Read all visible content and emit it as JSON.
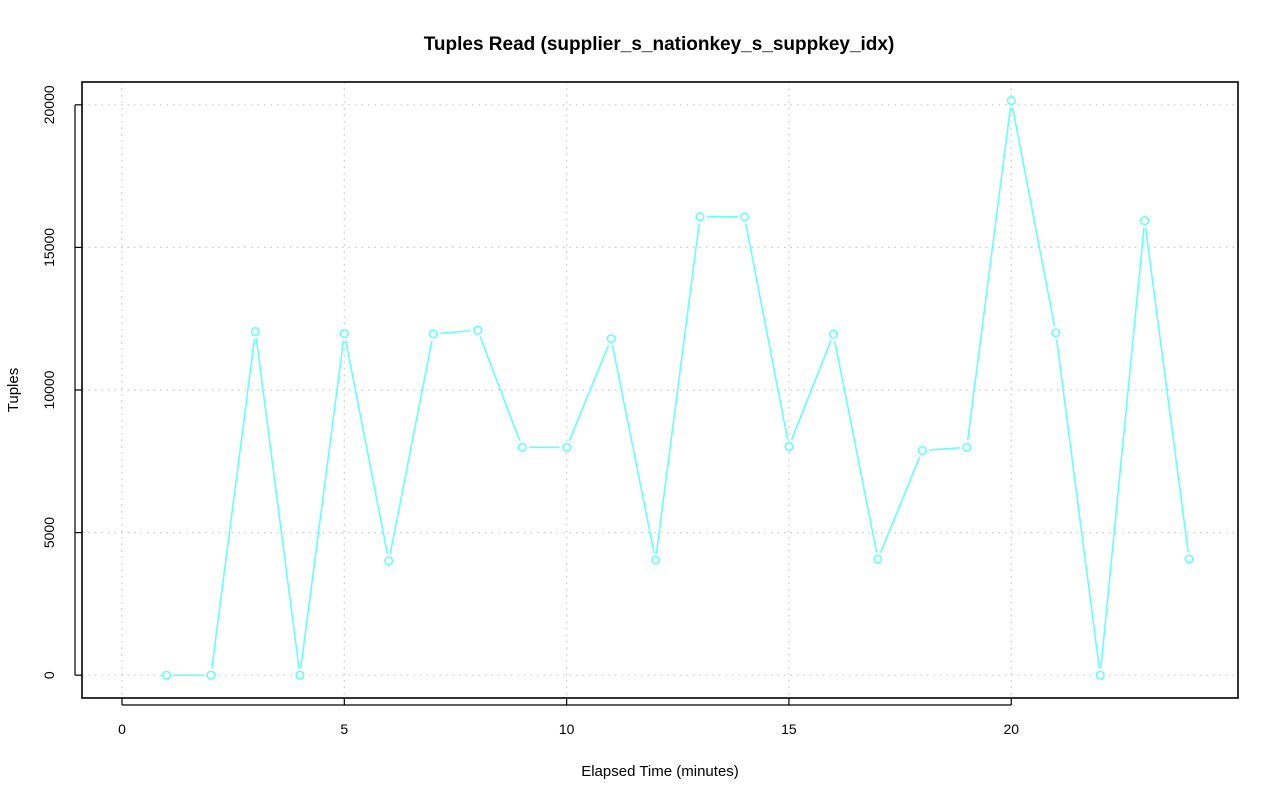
{
  "chart_data": {
    "type": "line",
    "title": "Tuples Read (supplier_s_nationkey_s_suppkey_idx)",
    "xlabel": "Elapsed Time (minutes)",
    "ylabel": "Tuples",
    "xlim": [
      -0.9,
      25.1
    ],
    "ylim": [
      -800,
      20800
    ],
    "x_ticks": [
      0,
      5,
      10,
      15,
      20
    ],
    "y_ticks": [
      0,
      5000,
      10000,
      15000,
      20000
    ],
    "x_tick_labels": [
      "0",
      "5",
      "10",
      "15",
      "20"
    ],
    "y_tick_labels": [
      "0",
      "5000",
      "10000",
      "15000",
      "20000"
    ],
    "grid": true,
    "series": [
      {
        "color": "#66ffff",
        "x": [
          1,
          2,
          3,
          4,
          5,
          6,
          7,
          8,
          9,
          10,
          11,
          12,
          13,
          14,
          15,
          16,
          17,
          18,
          19,
          20,
          21,
          22,
          23,
          24
        ],
        "y": [
          0,
          0,
          12050,
          0,
          11980,
          4010,
          11970,
          12100,
          7990,
          7990,
          11800,
          4040,
          16080,
          16070,
          8020,
          11960,
          4070,
          7880,
          7990,
          20150,
          12010,
          0,
          15940,
          4070
        ]
      }
    ]
  }
}
